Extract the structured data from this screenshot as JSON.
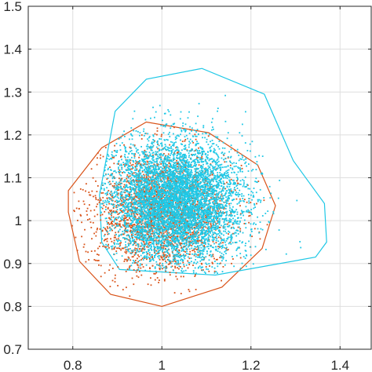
{
  "chart_data": {
    "type": "scatter",
    "title": "",
    "xlabel": "",
    "ylabel": "",
    "xlim": [
      0.7,
      1.47
    ],
    "ylim": [
      0.7,
      1.5
    ],
    "grid": true,
    "xticks": [
      0.8,
      1,
      1.2,
      1.4
    ],
    "xtick_labels": [
      "0.8",
      "1",
      "1.2",
      "1.4"
    ],
    "yticks": [
      0.7,
      0.8,
      0.9,
      1,
      1.1,
      1.2,
      1.3,
      1.4,
      1.5
    ],
    "ytick_labels": [
      "0.7",
      "0.8",
      "0.9",
      "1",
      "1.1",
      "1.2",
      "1.3",
      "1.4",
      "1.5"
    ],
    "series": [
      {
        "color": "#D95319",
        "cloud": {
          "center": [
            1.0,
            1.02
          ],
          "spread": [
            0.075,
            0.07
          ],
          "count": 2600
        },
        "hull": [
          [
            0.79,
            1.07
          ],
          [
            0.865,
            1.17
          ],
          [
            0.965,
            1.23
          ],
          [
            1.105,
            1.205
          ],
          [
            1.215,
            1.13
          ],
          [
            1.255,
            1.035
          ],
          [
            1.225,
            0.935
          ],
          [
            1.135,
            0.845
          ],
          [
            1.0,
            0.8
          ],
          [
            0.885,
            0.828
          ],
          [
            0.815,
            0.905
          ],
          [
            0.79,
            1.02
          ]
        ]
      },
      {
        "color": "#1FC8E6",
        "cloud": {
          "center": [
            1.03,
            1.045
          ],
          "spread": [
            0.075,
            0.07
          ],
          "count": 6000
        },
        "hull": [
          [
            0.895,
            1.255
          ],
          [
            0.965,
            1.33
          ],
          [
            1.09,
            1.355
          ],
          [
            1.23,
            1.295
          ],
          [
            1.295,
            1.14
          ],
          [
            1.365,
            1.04
          ],
          [
            1.37,
            0.95
          ],
          [
            1.345,
            0.915
          ],
          [
            1.12,
            0.873
          ],
          [
            0.905,
            0.886
          ],
          [
            0.865,
            0.95
          ],
          [
            0.86,
            1.06
          ]
        ]
      }
    ]
  }
}
